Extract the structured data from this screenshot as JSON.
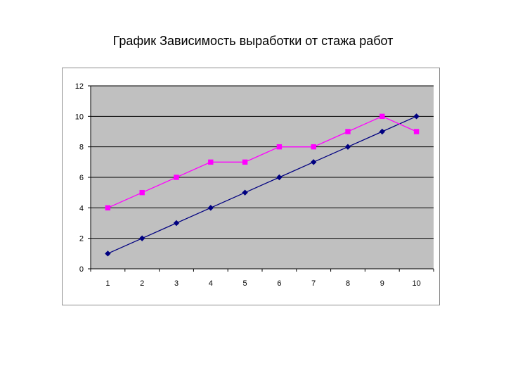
{
  "slide": {
    "title": "График Зависимость выработки от стажа работ"
  },
  "chart_data": {
    "type": "line",
    "title": "",
    "xlabel": "",
    "ylabel": "",
    "categories": [
      "1",
      "2",
      "3",
      "4",
      "5",
      "6",
      "7",
      "8",
      "9",
      "10"
    ],
    "ylim": [
      0,
      12
    ],
    "ytick_step": 2,
    "grid": true,
    "legend": "none",
    "plot_background": "#c0c0c0",
    "series": [
      {
        "values": [
          1,
          2,
          3,
          4,
          5,
          6,
          7,
          8,
          9,
          10
        ],
        "color": "#000080",
        "marker": "diamond"
      },
      {
        "values": [
          4,
          5,
          6,
          7,
          7,
          8,
          8,
          9,
          10,
          9
        ],
        "color": "#ff00ff",
        "marker": "square"
      }
    ]
  }
}
